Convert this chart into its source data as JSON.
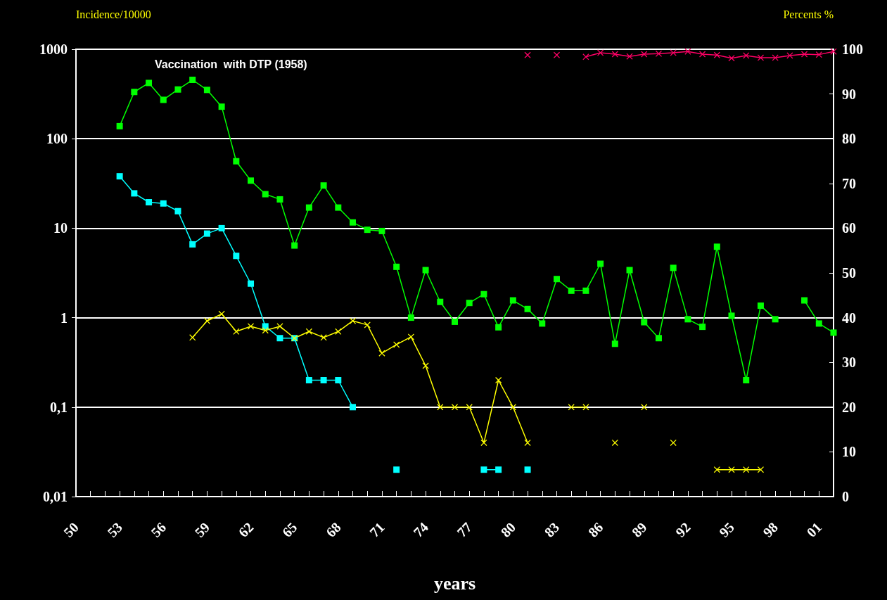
{
  "chart_data": {
    "type": "line",
    "title": "Vaccination  with DTP (1958)",
    "xlabel": "years",
    "ylabel": "Incidence/10000",
    "y2label": "Percents %",
    "x": [
      1953,
      1954,
      1955,
      1956,
      1957,
      1958,
      1959,
      1960,
      1961,
      1962,
      1963,
      1964,
      1965,
      1966,
      1967,
      1968,
      1969,
      1970,
      1971,
      1972,
      1973,
      1974,
      1975,
      1976,
      1977,
      1978,
      1979,
      1980,
      1981,
      1982,
      1983,
      1984,
      1985,
      1986,
      1987,
      1988,
      1989,
      1990,
      1991,
      1992,
      1993,
      1994,
      1995,
      1996,
      1997,
      1998,
      1999,
      2000,
      2001,
      2002
    ],
    "series": [
      {
        "color": "#00ff00",
        "marker": "square",
        "values": [
          138,
          333,
          420,
          272,
          355,
          455,
          351,
          228,
          56,
          34,
          24,
          21,
          6.4,
          17,
          30,
          17,
          11.6,
          9.6,
          9.3,
          3.7,
          1.0,
          3.4,
          1.5,
          0.9,
          1.46,
          1.83,
          0.78,
          1.56,
          1.25,
          0.86,
          2.7,
          2.0,
          2.0,
          4.0,
          0.51,
          3.4,
          0.89,
          0.59,
          3.6,
          0.96,
          0.79,
          6.2,
          1.05,
          0.2,
          1.36,
          0.96,
          null,
          1.56,
          0.86,
          0.68
        ]
      },
      {
        "color": "#00ffff",
        "marker": "square",
        "values": [
          38,
          24.5,
          19.5,
          18.9,
          15.5,
          6.6,
          8.7,
          10,
          4.9,
          2.4,
          0.8,
          0.59,
          0.59,
          0.2,
          0.2,
          0.2,
          0.1,
          null,
          null,
          0.02,
          null,
          null,
          null,
          null,
          null,
          0.02,
          0.02,
          null,
          0.02,
          null,
          null,
          null,
          null,
          null,
          null,
          null,
          null,
          null,
          null,
          null,
          null,
          null,
          null,
          null,
          null,
          null,
          null,
          null,
          null,
          null
        ]
      },
      {
        "color": "#ffff00",
        "marker": "cross",
        "values": [
          null,
          null,
          null,
          null,
          null,
          0.6,
          0.92,
          1.1,
          0.7,
          0.8,
          0.72,
          0.8,
          0.59,
          0.7,
          0.6,
          0.7,
          0.92,
          0.83,
          0.4,
          0.5,
          0.61,
          0.29,
          0.1,
          0.1,
          0.1,
          0.04,
          0.2,
          0.1,
          0.04,
          null,
          null,
          0.1,
          0.1,
          null,
          0.04,
          null,
          0.1,
          null,
          0.04,
          null,
          null,
          0.02,
          0.02,
          0.02,
          0.02,
          null,
          null,
          null,
          null,
          null
        ]
      },
      {
        "color": "#ff0066",
        "marker": "cross",
        "axis": "y2",
        "values": [
          null,
          null,
          null,
          null,
          null,
          null,
          null,
          null,
          null,
          null,
          null,
          null,
          null,
          null,
          null,
          null,
          null,
          null,
          null,
          null,
          null,
          null,
          null,
          null,
          null,
          null,
          null,
          null,
          98.7,
          null,
          98.7,
          null,
          98.3,
          99.2,
          98.9,
          98.4,
          98.9,
          99.0,
          99.2,
          99.5,
          98.9,
          98.7,
          98.0,
          98.6,
          98.1,
          98.1,
          98.6,
          98.9,
          98.8,
          99.5
        ]
      }
    ],
    "xlim": [
      1950,
      2002
    ],
    "xticks": [
      {
        "value": 1950,
        "label": "50"
      },
      {
        "value": 1951,
        "label": null
      },
      {
        "value": 1952,
        "label": null
      },
      {
        "value": 1953,
        "label": "53"
      },
      {
        "value": 1954,
        "label": null
      },
      {
        "value": 1955,
        "label": null
      },
      {
        "value": 1956,
        "label": "56"
      },
      {
        "value": 1957,
        "label": null
      },
      {
        "value": 1958,
        "label": null
      },
      {
        "value": 1959,
        "label": "59"
      },
      {
        "value": 1960,
        "label": null
      },
      {
        "value": 1961,
        "label": null
      },
      {
        "value": 1962,
        "label": "62"
      },
      {
        "value": 1963,
        "label": null
      },
      {
        "value": 1964,
        "label": null
      },
      {
        "value": 1965,
        "label": "65"
      },
      {
        "value": 1966,
        "label": null
      },
      {
        "value": 1967,
        "label": null
      },
      {
        "value": 1968,
        "label": "68"
      },
      {
        "value": 1969,
        "label": null
      },
      {
        "value": 1970,
        "label": null
      },
      {
        "value": 1971,
        "label": "71"
      },
      {
        "value": 1972,
        "label": null
      },
      {
        "value": 1973,
        "label": null
      },
      {
        "value": 1974,
        "label": "74"
      },
      {
        "value": 1975,
        "label": null
      },
      {
        "value": 1976,
        "label": null
      },
      {
        "value": 1977,
        "label": "77"
      },
      {
        "value": 1978,
        "label": null
      },
      {
        "value": 1979,
        "label": null
      },
      {
        "value": 1980,
        "label": "80"
      },
      {
        "value": 1981,
        "label": null
      },
      {
        "value": 1982,
        "label": null
      },
      {
        "value": 1983,
        "label": "83"
      },
      {
        "value": 1984,
        "label": null
      },
      {
        "value": 1985,
        "label": null
      },
      {
        "value": 1986,
        "label": "86"
      },
      {
        "value": 1987,
        "label": null
      },
      {
        "value": 1988,
        "label": null
      },
      {
        "value": 1989,
        "label": "89"
      },
      {
        "value": 1990,
        "label": null
      },
      {
        "value": 1991,
        "label": null
      },
      {
        "value": 1992,
        "label": "92"
      },
      {
        "value": 1993,
        "label": null
      },
      {
        "value": 1994,
        "label": null
      },
      {
        "value": 1995,
        "label": "95"
      },
      {
        "value": 1996,
        "label": null
      },
      {
        "value": 1997,
        "label": null
      },
      {
        "value": 1998,
        "label": "98"
      },
      {
        "value": 1999,
        "label": null
      },
      {
        "value": 2000,
        "label": null
      },
      {
        "value": 2001,
        "label": "01"
      },
      {
        "value": 2002,
        "label": null
      }
    ],
    "ylim": [
      0.01,
      1000
    ],
    "yticks": [
      {
        "value": 0.01,
        "label": "0,01"
      },
      {
        "value": 0.1,
        "label": "0,1"
      },
      1,
      10,
      100,
      1000
    ],
    "y2lim": [
      0,
      100
    ],
    "y2ticks": [
      0,
      10,
      20,
      30,
      40,
      50,
      60,
      70,
      80,
      90,
      100
    ],
    "log": "y",
    "grid": "y",
    "legend": false,
    "line_style": "solid"
  }
}
